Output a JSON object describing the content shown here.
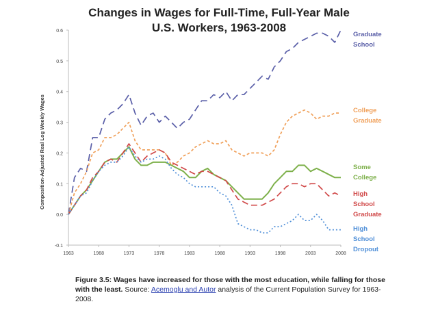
{
  "chart_data": {
    "type": "line",
    "title_line1": "Changes in Wages for Full-Time, Full-Year Male",
    "title_line2": "U.S. Workers, 1963-2008",
    "ylabel": "Composition-Adjusted Real Log Weekly Wages",
    "xlabel": "",
    "xlim": [
      1963,
      2008
    ],
    "ylim": [
      -0.1,
      0.6
    ],
    "x_ticks": [
      "1963",
      "1968",
      "1973",
      "1978",
      "1983",
      "1988",
      "1993",
      "1998",
      "2003",
      "2008"
    ],
    "y_ticks": [
      "-0.1",
      "0.0",
      "0.1",
      "0.2",
      "0.3",
      "0.4",
      "0.5",
      "0.6"
    ],
    "years": [
      1963,
      1964,
      1965,
      1966,
      1967,
      1968,
      1969,
      1970,
      1971,
      1972,
      1973,
      1974,
      1975,
      1976,
      1977,
      1978,
      1979,
      1980,
      1981,
      1982,
      1983,
      1984,
      1985,
      1986,
      1987,
      1988,
      1989,
      1990,
      1991,
      1992,
      1993,
      1994,
      1995,
      1996,
      1997,
      1998,
      1999,
      2000,
      2001,
      2002,
      2003,
      2004,
      2005,
      2006,
      2007,
      2008
    ],
    "series": [
      {
        "name": "Graduate School",
        "label_lines": [
          "Graduate",
          "School"
        ],
        "color": "#5a5fa8",
        "dash": "10,6",
        "values": [
          0.0,
          0.12,
          0.15,
          0.14,
          0.25,
          0.25,
          0.31,
          0.33,
          0.34,
          0.36,
          0.39,
          0.33,
          0.29,
          0.32,
          0.33,
          0.3,
          0.32,
          0.3,
          0.28,
          0.3,
          0.31,
          0.34,
          0.37,
          0.37,
          0.39,
          0.38,
          0.4,
          0.37,
          0.39,
          0.39,
          0.41,
          0.43,
          0.45,
          0.44,
          0.48,
          0.5,
          0.53,
          0.54,
          0.56,
          0.57,
          0.58,
          0.59,
          0.59,
          0.58,
          0.56,
          0.6
        ]
      },
      {
        "name": "College Graduate",
        "label_lines": [
          "College",
          "Graduate"
        ],
        "color": "#f0a05a",
        "dash": "4,3",
        "values": [
          0.0,
          0.07,
          0.1,
          0.14,
          0.2,
          0.21,
          0.25,
          0.25,
          0.26,
          0.28,
          0.3,
          0.24,
          0.21,
          0.21,
          0.21,
          0.21,
          0.2,
          0.16,
          0.17,
          0.19,
          0.2,
          0.22,
          0.23,
          0.24,
          0.23,
          0.23,
          0.24,
          0.21,
          0.2,
          0.19,
          0.2,
          0.2,
          0.2,
          0.19,
          0.21,
          0.26,
          0.3,
          0.32,
          0.33,
          0.34,
          0.33,
          0.31,
          0.32,
          0.32,
          0.33,
          0.33
        ]
      },
      {
        "name": "Some College",
        "label_lines": [
          "Some",
          "College"
        ],
        "color": "#7db04a",
        "dash": "",
        "values": [
          0.0,
          0.03,
          0.06,
          0.08,
          0.11,
          0.14,
          0.17,
          0.18,
          0.18,
          0.2,
          0.22,
          0.18,
          0.16,
          0.16,
          0.17,
          0.17,
          0.17,
          0.16,
          0.15,
          0.14,
          0.12,
          0.12,
          0.14,
          0.15,
          0.13,
          0.12,
          0.11,
          0.09,
          0.07,
          0.05,
          0.05,
          0.05,
          0.05,
          0.07,
          0.1,
          0.12,
          0.14,
          0.14,
          0.16,
          0.16,
          0.14,
          0.15,
          0.14,
          0.13,
          0.12,
          0.12
        ]
      },
      {
        "name": "High School Graduate",
        "label_lines": [
          "High",
          "School",
          "Graduate"
        ],
        "color": "#d04848",
        "dash": "9,5",
        "values": [
          0.0,
          0.03,
          0.06,
          0.08,
          0.12,
          0.14,
          0.17,
          0.18,
          0.17,
          0.2,
          0.23,
          0.2,
          0.17,
          0.19,
          0.2,
          0.21,
          0.2,
          0.17,
          0.16,
          0.15,
          0.14,
          0.13,
          0.14,
          0.14,
          0.13,
          0.12,
          0.11,
          0.08,
          0.05,
          0.04,
          0.03,
          0.03,
          0.03,
          0.04,
          0.05,
          0.07,
          0.09,
          0.1,
          0.1,
          0.09,
          0.1,
          0.1,
          0.08,
          0.06,
          0.07,
          0.06
        ]
      },
      {
        "name": "High School Dropout",
        "label_lines": [
          "High",
          "School",
          "Dropout"
        ],
        "color": "#4f8fd8",
        "dash": "2,3",
        "values": [
          0.0,
          0.03,
          0.06,
          0.07,
          0.11,
          0.14,
          0.16,
          0.17,
          0.17,
          0.19,
          0.22,
          0.19,
          0.17,
          0.18,
          0.18,
          0.19,
          0.18,
          0.15,
          0.13,
          0.12,
          0.1,
          0.09,
          0.09,
          0.09,
          0.09,
          0.07,
          0.06,
          0.03,
          -0.03,
          -0.04,
          -0.05,
          -0.05,
          -0.06,
          -0.06,
          -0.04,
          -0.04,
          -0.03,
          -0.02,
          0.0,
          -0.02,
          -0.02,
          0.0,
          -0.02,
          -0.05,
          -0.05,
          -0.05
        ]
      }
    ]
  },
  "caption": {
    "bold": "Figure 3.5: Wages have increased for those with the most education, while falling for those with the least.",
    "source_prefix": " Source: ",
    "link": "Acemoglu and Autor",
    "source_suffix": " analysis of the Current Population Survey for 1963-2008."
  }
}
